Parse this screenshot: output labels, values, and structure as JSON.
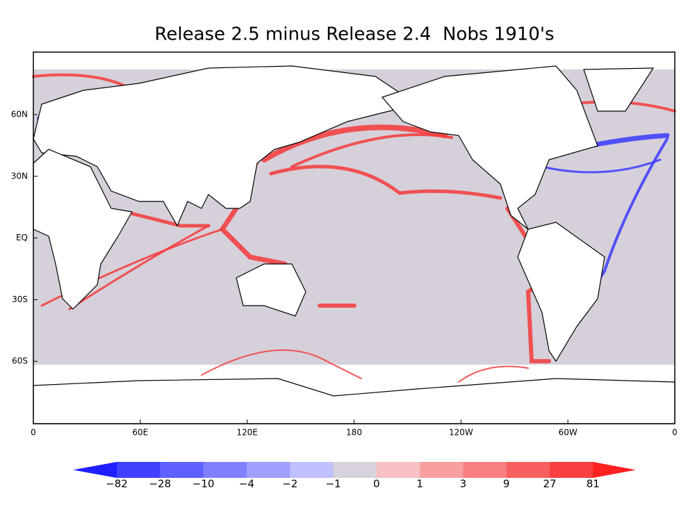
{
  "title": "Release 2.5 minus Release 2.4  Nobs 1910's",
  "map": {
    "lon_labels": [
      "0",
      "60E",
      "120E",
      "180",
      "120W",
      "60W",
      "0"
    ],
    "lat_labels": [
      "60N",
      "30N",
      "EQ",
      "30S",
      "60S"
    ]
  },
  "colorbar": {
    "labels": [
      "−82",
      "−28",
      "−10",
      "−4",
      "−2",
      "−1",
      "0",
      "1",
      "3",
      "9",
      "27",
      "81"
    ],
    "colors": [
      "#1e1eff",
      "#4040ff",
      "#6060ff",
      "#8080ff",
      "#a0a0ff",
      "#c0c0ff",
      "#d8d2dc",
      "#f8c0c4",
      "#f8a0a0",
      "#f88080",
      "#f86060",
      "#f84040",
      "#ff2020"
    ]
  }
}
